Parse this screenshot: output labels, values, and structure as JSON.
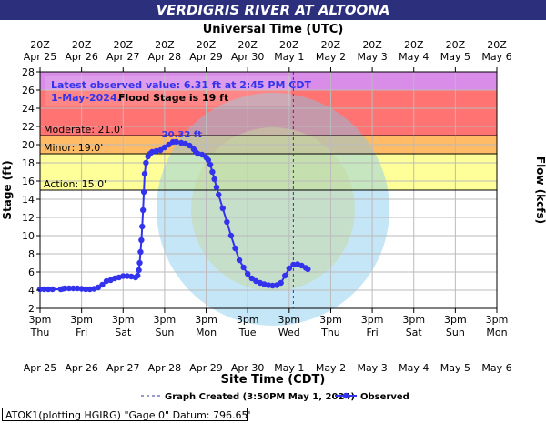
{
  "chart_data": {
    "type": "line",
    "title": "VERDIGRIS RIVER AT ALTOONA",
    "top_axis_label": "Universal Time (UTC)",
    "xlabel": "Site Time (CDT)",
    "ylabel": "Stage (ft)",
    "y2label": "Flow (kcfs)",
    "ylim": [
      2,
      28
    ],
    "yticks": [
      2,
      4,
      6,
      8,
      10,
      12,
      14,
      16,
      18,
      20,
      22,
      24,
      26,
      28
    ],
    "grid": true,
    "x_unit": "days from Apr 25 3pm CDT",
    "xlim": [
      0,
      11
    ],
    "bottom_ticks": [
      {
        "time": "3pm",
        "day": "Thu",
        "date": "Apr 25"
      },
      {
        "time": "3pm",
        "day": "Fri",
        "date": "Apr 26"
      },
      {
        "time": "3pm",
        "day": "Sat",
        "date": "Apr 27"
      },
      {
        "time": "3pm",
        "day": "Sun",
        "date": "Apr 28"
      },
      {
        "time": "3pm",
        "day": "Mon",
        "date": "Apr 29"
      },
      {
        "time": "3pm",
        "day": "Tue",
        "date": "Apr 30"
      },
      {
        "time": "3pm",
        "day": "Wed",
        "date": "May 1"
      },
      {
        "time": "3pm",
        "day": "Thu",
        "date": "May 2"
      },
      {
        "time": "3pm",
        "day": "Fri",
        "date": "May 3"
      },
      {
        "time": "3pm",
        "day": "Sat",
        "date": "May 4"
      },
      {
        "time": "3pm",
        "day": "Sun",
        "date": "May 5"
      },
      {
        "time": "3pm",
        "day": "Mon",
        "date": "May 6"
      }
    ],
    "top_ticks": [
      {
        "time": "20Z",
        "date": "Apr 25"
      },
      {
        "time": "20Z",
        "date": "Apr 26"
      },
      {
        "time": "20Z",
        "date": "Apr 27"
      },
      {
        "time": "20Z",
        "date": "Apr 28"
      },
      {
        "time": "20Z",
        "date": "Apr 29"
      },
      {
        "time": "20Z",
        "date": "Apr 30"
      },
      {
        "time": "20Z",
        "date": "May 1"
      },
      {
        "time": "20Z",
        "date": "May 2"
      },
      {
        "time": "20Z",
        "date": "May 3"
      },
      {
        "time": "20Z",
        "date": "May 4"
      },
      {
        "time": "20Z",
        "date": "May 5"
      },
      {
        "time": "20Z",
        "date": "May 6"
      }
    ],
    "flood_bands": [
      {
        "from": 26,
        "to": 28,
        "color": "#d98ce8"
      },
      {
        "from": 21,
        "to": 26,
        "color": "#ff7373"
      },
      {
        "from": 19,
        "to": 21,
        "color": "#ffbb66"
      },
      {
        "from": 15,
        "to": 19,
        "color": "#ffff99"
      }
    ],
    "thresholds": [
      {
        "label": "Moderate: 21.0'",
        "value": 21.0
      },
      {
        "label": "Minor: 19.0'",
        "value": 19.0
      },
      {
        "label": "Action: 15.0'",
        "value": 15.0
      }
    ],
    "series": [
      {
        "name": "Observed",
        "color": "#3333ee",
        "points": [
          [
            0.0,
            4.1
          ],
          [
            0.1,
            4.1
          ],
          [
            0.2,
            4.1
          ],
          [
            0.3,
            4.1
          ],
          [
            0.5,
            4.1
          ],
          [
            0.55,
            4.15
          ],
          [
            0.6,
            4.2
          ],
          [
            0.7,
            4.2
          ],
          [
            0.8,
            4.2
          ],
          [
            0.9,
            4.2
          ],
          [
            1.0,
            4.15
          ],
          [
            1.1,
            4.1
          ],
          [
            1.2,
            4.1
          ],
          [
            1.3,
            4.15
          ],
          [
            1.4,
            4.3
          ],
          [
            1.5,
            4.6
          ],
          [
            1.6,
            5.0
          ],
          [
            1.7,
            5.1
          ],
          [
            1.8,
            5.3
          ],
          [
            1.9,
            5.4
          ],
          [
            2.0,
            5.55
          ],
          [
            2.1,
            5.55
          ],
          [
            2.2,
            5.5
          ],
          [
            2.3,
            5.4
          ],
          [
            2.35,
            5.6
          ],
          [
            2.38,
            6.2
          ],
          [
            2.4,
            7.0
          ],
          [
            2.42,
            8.2
          ],
          [
            2.44,
            9.5
          ],
          [
            2.46,
            11.0
          ],
          [
            2.48,
            12.8
          ],
          [
            2.5,
            14.8
          ],
          [
            2.52,
            16.8
          ],
          [
            2.55,
            18.0
          ],
          [
            2.6,
            18.7
          ],
          [
            2.65,
            19.0
          ],
          [
            2.7,
            19.2
          ],
          [
            2.8,
            19.3
          ],
          [
            2.9,
            19.4
          ],
          [
            3.0,
            19.7
          ],
          [
            3.1,
            20.0
          ],
          [
            3.2,
            20.3
          ],
          [
            3.28,
            20.32
          ],
          [
            3.4,
            20.2
          ],
          [
            3.5,
            20.1
          ],
          [
            3.6,
            19.9
          ],
          [
            3.7,
            19.5
          ],
          [
            3.75,
            19.2
          ],
          [
            3.8,
            19.0
          ],
          [
            3.9,
            18.9
          ],
          [
            4.0,
            18.6
          ],
          [
            4.05,
            18.3
          ],
          [
            4.1,
            17.8
          ],
          [
            4.15,
            17.0
          ],
          [
            4.2,
            16.2
          ],
          [
            4.25,
            15.3
          ],
          [
            4.3,
            14.5
          ],
          [
            4.4,
            13.0
          ],
          [
            4.5,
            11.5
          ],
          [
            4.6,
            10.0
          ],
          [
            4.7,
            8.6
          ],
          [
            4.8,
            7.3
          ],
          [
            4.9,
            6.5
          ],
          [
            5.0,
            5.8
          ],
          [
            5.1,
            5.3
          ],
          [
            5.2,
            5.0
          ],
          [
            5.3,
            4.8
          ],
          [
            5.4,
            4.65
          ],
          [
            5.5,
            4.55
          ],
          [
            5.6,
            4.5
          ],
          [
            5.7,
            4.55
          ],
          [
            5.8,
            4.8
          ],
          [
            5.9,
            5.6
          ],
          [
            6.0,
            6.4
          ],
          [
            6.1,
            6.8
          ],
          [
            6.2,
            6.85
          ],
          [
            6.3,
            6.7
          ],
          [
            6.4,
            6.45
          ],
          [
            6.45,
            6.31
          ]
        ]
      }
    ],
    "crest_label": "20.32 ft",
    "crest": {
      "x": 3.28,
      "y": 20.32
    },
    "latest_observed": {
      "line1": "Latest observed value: 6.31 ft at 2:45 PM CDT",
      "line2": "1-May-2024.",
      "flood_stage_text": "Flood Stage is 19 ft"
    },
    "graph_created_x": 6.1,
    "legend": {
      "graph_created": "Graph Created (3:50PM May 1, 2024)",
      "observed": "Observed"
    },
    "footer": "ATOK1(plotting HGIRG) \"Gage 0\" Datum: 796.65'"
  }
}
